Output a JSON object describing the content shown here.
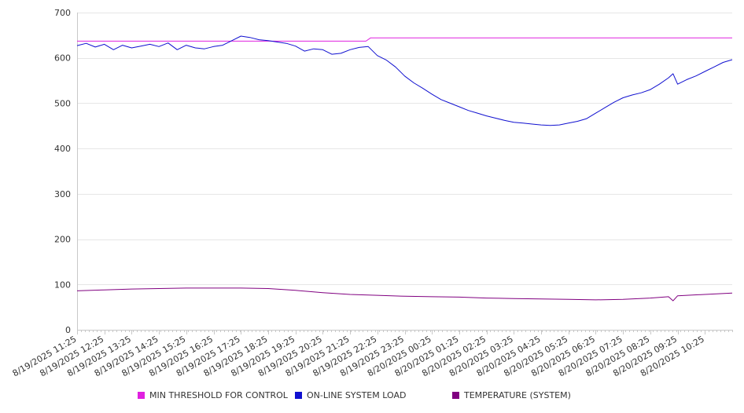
{
  "chart_data": {
    "type": "line",
    "title": "",
    "xlabel": "",
    "ylabel": "",
    "ylim": [
      0,
      700
    ],
    "yticks": [
      0,
      100,
      200,
      300,
      400,
      500,
      600,
      700
    ],
    "grid": true,
    "legend_position": "bottom",
    "x_tick_labels": [
      "8/19/2025 11:25",
      "8/19/2025 12:25",
      "8/19/2025 13:25",
      "8/19/2025 14:25",
      "8/19/2025 15:25",
      "8/19/2025 16:25",
      "8/19/2025 17:25",
      "8/19/2025 18:25",
      "8/19/2025 19:25",
      "8/19/2025 20:25",
      "8/19/2025 21:25",
      "8/19/2025 22:25",
      "8/19/2025 23:25",
      "8/20/2025 00:25",
      "8/20/2025 01:25",
      "8/20/2025 02:25",
      "8/20/2025 03:25",
      "8/20/2025 04:25",
      "8/20/2025 05:25",
      "8/20/2025 06:25",
      "8/20/2025 07:25",
      "8/20/2025 08:25",
      "8/20/2025 09:25",
      "8/20/2025 10:25"
    ],
    "x_range": [
      "8/19/2025 11:25",
      "8/20/2025 11:25"
    ],
    "series": [
      {
        "name": "MIN THRESHOLD FOR CONTROL",
        "color": "#e020e0",
        "points": [
          [
            "8/19/2025 11:25",
            637
          ],
          [
            "8/19/2025 22:00",
            637
          ],
          [
            "8/19/2025 22:10",
            644
          ],
          [
            "8/20/2025 11:25",
            644
          ]
        ]
      },
      {
        "name": "ON-LINE SYSTEM LOAD",
        "color": "#1010d0",
        "points": [
          [
            "8/19/2025 11:25",
            627
          ],
          [
            "8/19/2025 11:45",
            632
          ],
          [
            "8/19/2025 12:05",
            624
          ],
          [
            "8/19/2025 12:25",
            630
          ],
          [
            "8/19/2025 12:45",
            618
          ],
          [
            "8/19/2025 13:05",
            628
          ],
          [
            "8/19/2025 13:25",
            622
          ],
          [
            "8/19/2025 13:45",
            626
          ],
          [
            "8/19/2025 14:05",
            630
          ],
          [
            "8/19/2025 14:25",
            625
          ],
          [
            "8/19/2025 14:45",
            633
          ],
          [
            "8/19/2025 15:05",
            618
          ],
          [
            "8/19/2025 15:25",
            628
          ],
          [
            "8/19/2025 15:45",
            622
          ],
          [
            "8/19/2025 16:05",
            620
          ],
          [
            "8/19/2025 16:25",
            625
          ],
          [
            "8/19/2025 16:45",
            628
          ],
          [
            "8/19/2025 17:05",
            638
          ],
          [
            "8/19/2025 17:25",
            648
          ],
          [
            "8/19/2025 17:45",
            645
          ],
          [
            "8/19/2025 18:05",
            640
          ],
          [
            "8/19/2025 18:25",
            638
          ],
          [
            "8/19/2025 18:45",
            635
          ],
          [
            "8/19/2025 19:05",
            632
          ],
          [
            "8/19/2025 19:25",
            626
          ],
          [
            "8/19/2025 19:45",
            615
          ],
          [
            "8/19/2025 20:05",
            620
          ],
          [
            "8/19/2025 20:25",
            618
          ],
          [
            "8/19/2025 20:45",
            608
          ],
          [
            "8/19/2025 21:05",
            610
          ],
          [
            "8/19/2025 21:25",
            618
          ],
          [
            "8/19/2025 21:45",
            623
          ],
          [
            "8/19/2025 22:05",
            625
          ],
          [
            "8/19/2025 22:25",
            605
          ],
          [
            "8/19/2025 22:45",
            595
          ],
          [
            "8/19/2025 23:05",
            580
          ],
          [
            "8/19/2025 23:25",
            560
          ],
          [
            "8/19/2025 23:45",
            545
          ],
          [
            "8/20/2025 00:05",
            533
          ],
          [
            "8/20/2025 00:25",
            520
          ],
          [
            "8/20/2025 00:45",
            508
          ],
          [
            "8/20/2025 01:05",
            500
          ],
          [
            "8/20/2025 01:25",
            492
          ],
          [
            "8/20/2025 01:45",
            484
          ],
          [
            "8/20/2025 02:05",
            478
          ],
          [
            "8/20/2025 02:25",
            472
          ],
          [
            "8/20/2025 02:45",
            467
          ],
          [
            "8/20/2025 03:05",
            462
          ],
          [
            "8/20/2025 03:25",
            458
          ],
          [
            "8/20/2025 03:45",
            456
          ],
          [
            "8/20/2025 04:05",
            454
          ],
          [
            "8/20/2025 04:25",
            452
          ],
          [
            "8/20/2025 04:45",
            451
          ],
          [
            "8/20/2025 05:05",
            452
          ],
          [
            "8/20/2025 05:25",
            456
          ],
          [
            "8/20/2025 05:45",
            460
          ],
          [
            "8/20/2025 06:05",
            466
          ],
          [
            "8/20/2025 06:25",
            478
          ],
          [
            "8/20/2025 06:45",
            490
          ],
          [
            "8/20/2025 07:05",
            502
          ],
          [
            "8/20/2025 07:25",
            512
          ],
          [
            "8/20/2025 07:45",
            518
          ],
          [
            "8/20/2025 08:05",
            523
          ],
          [
            "8/20/2025 08:25",
            530
          ],
          [
            "8/20/2025 08:45",
            542
          ],
          [
            "8/20/2025 09:05",
            556
          ],
          [
            "8/20/2025 09:15",
            565
          ],
          [
            "8/20/2025 09:25",
            542
          ],
          [
            "8/20/2025 09:45",
            552
          ],
          [
            "8/20/2025 10:05",
            560
          ],
          [
            "8/20/2025 10:25",
            570
          ],
          [
            "8/20/2025 10:45",
            580
          ],
          [
            "8/20/2025 11:05",
            590
          ],
          [
            "8/20/2025 11:25",
            596
          ]
        ]
      },
      {
        "name": "TEMPERATURE (SYSTEM)",
        "color": "#800080",
        "points": [
          [
            "8/19/2025 11:25",
            86
          ],
          [
            "8/19/2025 12:25",
            88
          ],
          [
            "8/19/2025 13:25",
            90
          ],
          [
            "8/19/2025 14:25",
            91
          ],
          [
            "8/19/2025 15:25",
            92
          ],
          [
            "8/19/2025 16:25",
            92
          ],
          [
            "8/19/2025 17:25",
            92
          ],
          [
            "8/19/2025 18:25",
            91
          ],
          [
            "8/19/2025 19:25",
            87
          ],
          [
            "8/19/2025 20:25",
            82
          ],
          [
            "8/19/2025 21:25",
            78
          ],
          [
            "8/19/2025 22:25",
            76
          ],
          [
            "8/19/2025 23:25",
            74
          ],
          [
            "8/20/2025 00:25",
            73
          ],
          [
            "8/20/2025 01:25",
            72
          ],
          [
            "8/20/2025 02:25",
            70
          ],
          [
            "8/20/2025 03:25",
            69
          ],
          [
            "8/20/2025 04:25",
            68
          ],
          [
            "8/20/2025 05:25",
            67
          ],
          [
            "8/20/2025 06:25",
            66
          ],
          [
            "8/20/2025 07:25",
            67
          ],
          [
            "8/20/2025 08:25",
            70
          ],
          [
            "8/20/2025 09:05",
            73
          ],
          [
            "8/20/2025 09:15",
            64
          ],
          [
            "8/20/2025 09:25",
            75
          ],
          [
            "8/20/2025 10:25",
            78
          ],
          [
            "8/20/2025 11:25",
            81
          ]
        ]
      }
    ]
  }
}
